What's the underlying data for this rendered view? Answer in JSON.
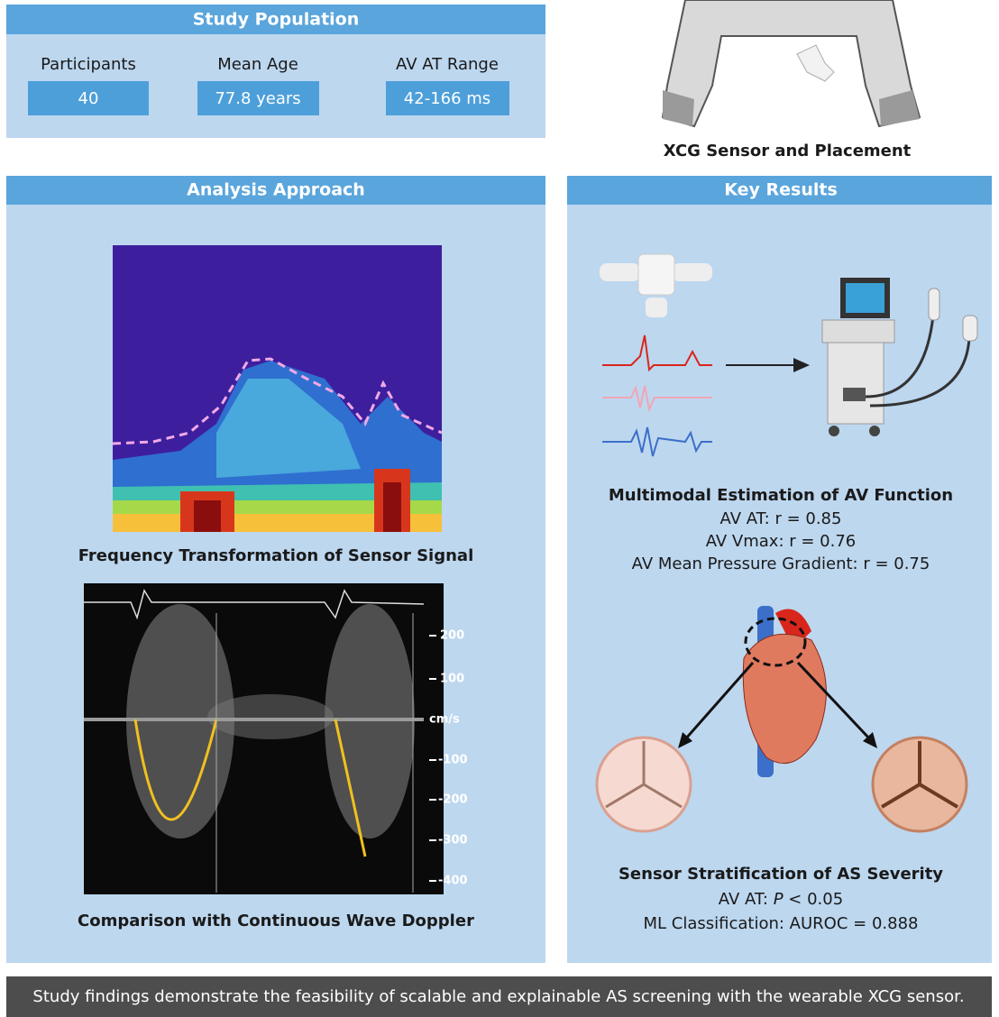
{
  "study_population": {
    "title": "Study Population",
    "stats": [
      {
        "label": "Participants",
        "value": "40"
      },
      {
        "label": "Mean Age",
        "value": "77.8 years"
      },
      {
        "label": "AV AT Range",
        "value": "42-166 ms"
      }
    ]
  },
  "sensor": {
    "caption": "XCG Sensor and Placement"
  },
  "analysis": {
    "title": "Analysis Approach",
    "spectrogram_caption": "Frequency Transformation of Sensor Signal",
    "doppler_axis": [
      "200",
      "100",
      "cm/s",
      "-100",
      "-200",
      "-300",
      "-400"
    ],
    "doppler_caption": "Comparison with Continuous Wave Doppler"
  },
  "key_results": {
    "title": "Key Results",
    "multimodal": {
      "title": "Multimodal Estimation of AV Function",
      "lines": [
        "AV AT: r = 0.85",
        "AV Vmax: r = 0.76",
        "AV Mean Pressure Gradient: r = 0.75"
      ]
    },
    "stratification": {
      "title": "Sensor Stratification of AS Severity",
      "line1_parts": [
        "AV AT: ",
        "P",
        " < 0.05"
      ],
      "line2": "ML Classification: AUROC = 0.888"
    }
  },
  "footer": "Study findings demonstrate the feasibility of scalable and explainable AS screening with the wearable XCG sensor."
}
